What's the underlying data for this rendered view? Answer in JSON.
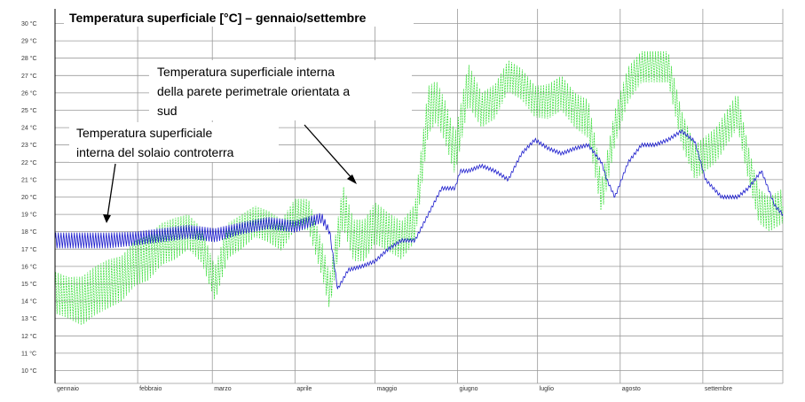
{
  "chart_data": {
    "type": "line",
    "title": "Temperatura superficiale [°C] – gennaio/settembre",
    "xlabel": "",
    "ylabel": "",
    "ylim": [
      10,
      30
    ],
    "grid": true,
    "x_ticks": [
      "gennaio",
      "febbraio",
      "marzo",
      "aprile",
      "maggio",
      "giugno",
      "luglio",
      "agosto",
      "settembre"
    ],
    "y_ticks": [
      "10 °C",
      "11 °C",
      "12 °C",
      "13 °C",
      "14 °C",
      "15 °C",
      "16 °C",
      "17 °C",
      "18 °C",
      "19 °C",
      "20 °C",
      "21 °C",
      "22 °C",
      "23 °C",
      "24 °C",
      "25 °C",
      "26 °C",
      "27 °C",
      "28 °C",
      "29 °C",
      "30 °C"
    ],
    "x_unit_positions": [
      0,
      31,
      59,
      90,
      120,
      151,
      181,
      212,
      243
    ],
    "x_max": 273,
    "series": [
      {
        "color": "#33dd33",
        "x": [
          0,
          5,
          10,
          15,
          20,
          25,
          30,
          35,
          40,
          45,
          50,
          55,
          60,
          65,
          70,
          75,
          80,
          85,
          90,
          95,
          100,
          103,
          108,
          112,
          116,
          120,
          125,
          130,
          135,
          140,
          143,
          146,
          150,
          152,
          155,
          160,
          165,
          170,
          175,
          180,
          185,
          190,
          195,
          200,
          203,
          205,
          207,
          210,
          215,
          220,
          225,
          230,
          235,
          240,
          244,
          248,
          252,
          256,
          260,
          264,
          268,
          273
        ],
        "y": [
          14.5,
          14.2,
          14.0,
          14.6,
          15.0,
          15.3,
          16.2,
          16.5,
          17.3,
          17.6,
          18.0,
          17.2,
          15.0,
          17.5,
          18.0,
          18.6,
          18.3,
          17.8,
          19.0,
          19.0,
          16.5,
          14.5,
          19.5,
          17.5,
          17.5,
          18.5,
          18.0,
          17.5,
          18.5,
          25.0,
          25.5,
          24.5,
          22.5,
          24.0,
          26.5,
          25.0,
          25.5,
          27.0,
          26.5,
          25.5,
          25.5,
          26.0,
          25.0,
          24.5,
          22.0,
          20.0,
          21.5,
          24.0,
          26.5,
          27.5,
          27.5,
          27.5,
          24.0,
          22.0,
          22.5,
          23.0,
          24.0,
          25.0,
          22.0,
          19.5,
          19.0,
          19.5
        ],
        "amplitude": [
          1.2,
          1.2,
          1.4,
          1.4,
          1.4,
          1.3,
          1.3,
          1.3,
          1.2,
          1.2,
          1.0,
          1.0,
          1.0,
          1.0,
          1.0,
          0.9,
          0.9,
          0.9,
          0.9,
          0.9,
          1.0,
          1.0,
          1.2,
          1.2,
          1.2,
          1.2,
          1.1,
          1.1,
          1.1,
          1.4,
          1.2,
          1.2,
          1.2,
          1.2,
          1.2,
          1.0,
          1.0,
          0.9,
          0.9,
          0.9,
          1.0,
          1.0,
          1.0,
          1.1,
          1.1,
          1.0,
          1.0,
          1.0,
          1.0,
          0.9,
          0.9,
          0.9,
          1.0,
          1.0,
          1.0,
          1.0,
          1.0,
          1.0,
          1.0,
          1.0,
          1.0,
          1.0
        ]
      },
      {
        "color": "#1a1acc",
        "x": [
          0,
          10,
          20,
          30,
          40,
          50,
          60,
          70,
          80,
          90,
          100,
          103,
          106,
          110,
          115,
          120,
          125,
          130,
          135,
          140,
          145,
          150,
          152,
          155,
          160,
          165,
          170,
          175,
          180,
          185,
          190,
          195,
          200,
          205,
          207,
          210,
          215,
          220,
          225,
          230,
          235,
          240,
          244,
          250,
          256,
          260,
          265,
          270,
          273
        ],
        "y": [
          17.5,
          17.5,
          17.5,
          17.6,
          17.8,
          18.0,
          17.8,
          18.2,
          18.5,
          18.3,
          18.8,
          18.0,
          14.7,
          15.8,
          16.0,
          16.3,
          17.0,
          17.5,
          17.5,
          19.0,
          20.5,
          20.5,
          21.5,
          21.5,
          21.8,
          21.5,
          21.0,
          22.5,
          23.3,
          22.8,
          22.5,
          22.8,
          23.0,
          22.0,
          21.0,
          20.0,
          22.0,
          23.0,
          23.0,
          23.3,
          23.8,
          23.2,
          21.0,
          20.0,
          20.0,
          20.5,
          21.5,
          19.5,
          19.0
        ],
        "amplitude": [
          0.45,
          0.45,
          0.45,
          0.4,
          0.4,
          0.4,
          0.4,
          0.35,
          0.35,
          0.35,
          0.3,
          0.2,
          0.1,
          0.1,
          0.1,
          0.1,
          0.1,
          0.1,
          0.1,
          0.1,
          0.1,
          0.1,
          0.1,
          0.1,
          0.1,
          0.1,
          0.1,
          0.1,
          0.1,
          0.1,
          0.1,
          0.1,
          0.1,
          0.1,
          0.1,
          0.1,
          0.1,
          0.1,
          0.1,
          0.1,
          0.1,
          0.1,
          0.1,
          0.1,
          0.1,
          0.1,
          0.1,
          0.1,
          0.1
        ]
      }
    ],
    "annotations": [
      {
        "lines": [
          "Temperatura superficiale interna",
          "della parete perimetrale orientata a",
          "sud"
        ]
      },
      {
        "lines": [
          "Temperatura superficiale",
          "interna del solaio controterra"
        ]
      }
    ]
  }
}
